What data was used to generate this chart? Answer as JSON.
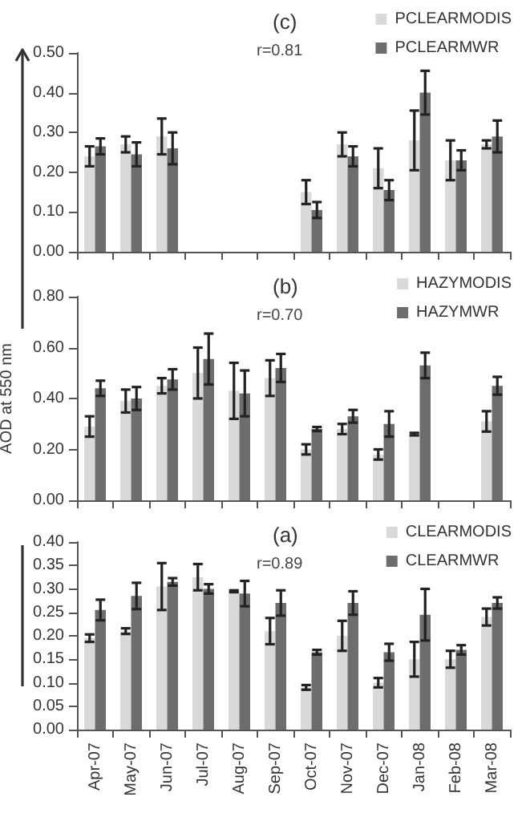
{
  "chart_data": [
    {
      "type": "bar",
      "title": "(c)",
      "annotations": [
        "r=0.81"
      ],
      "categories": [
        null,
        null,
        null,
        null,
        null,
        null,
        null,
        null,
        null,
        null,
        null,
        null
      ],
      "series": [
        {
          "name": "PCLEARMODIS",
          "color": "#d9d9d9",
          "values": [
            0.24,
            0.27,
            0.29,
            null,
            null,
            null,
            0.15,
            0.27,
            0.21,
            0.28,
            0.23,
            0.27
          ],
          "errors": [
            0.025,
            0.02,
            0.045,
            null,
            null,
            null,
            0.03,
            0.03,
            0.05,
            0.075,
            0.05,
            0.01
          ]
        },
        {
          "name": "PCLEARMWR",
          "color": "#6d6d6d",
          "values": [
            0.265,
            0.245,
            0.26,
            null,
            null,
            null,
            0.105,
            0.24,
            0.155,
            0.4,
            0.23,
            0.29
          ],
          "errors": [
            0.02,
            0.03,
            0.04,
            null,
            null,
            null,
            0.02,
            0.025,
            0.025,
            0.055,
            0.025,
            0.04
          ]
        }
      ],
      "ylim": [
        0,
        0.5
      ],
      "yticks": [
        {
          "value": 0,
          "label": "0.00"
        },
        {
          "value": 0.1,
          "label": "0.10"
        },
        {
          "value": 0.2,
          "label": "0.20"
        },
        {
          "value": 0.3,
          "label": "0.30"
        },
        {
          "value": 0.4,
          "label": "0.40"
        },
        {
          "value": 0.5,
          "label": "0.50"
        }
      ],
      "legend": "top right",
      "grid": false
    },
    {
      "type": "bar",
      "title": "(b)",
      "annotations": [
        "r=0.70"
      ],
      "ylabel": "AOD at 550 nm",
      "categories": [
        null,
        null,
        null,
        null,
        null,
        null,
        null,
        null,
        null,
        null,
        null,
        null
      ],
      "series": [
        {
          "name": "HAZYMODIS",
          "color": "#d9d9d9",
          "values": [
            0.29,
            0.39,
            0.45,
            0.5,
            0.43,
            0.48,
            0.2,
            0.28,
            0.18,
            0.26,
            null,
            0.31
          ],
          "errors": [
            0.04,
            0.045,
            0.03,
            0.1,
            0.11,
            0.07,
            0.02,
            0.02,
            0.02,
            0.005,
            null,
            0.04
          ]
        },
        {
          "name": "HAZYMWR",
          "color": "#6d6d6d",
          "values": [
            0.44,
            0.4,
            0.475,
            0.555,
            0.42,
            0.52,
            0.28,
            0.33,
            0.3,
            0.53,
            null,
            0.45
          ],
          "errors": [
            0.03,
            0.045,
            0.04,
            0.1,
            0.09,
            0.055,
            0.008,
            0.025,
            0.05,
            0.05,
            null,
            0.035
          ]
        }
      ],
      "ylim": [
        0,
        0.8
      ],
      "yticks": [
        {
          "value": 0,
          "label": "0.00"
        },
        {
          "value": 0.2,
          "label": "0.20"
        },
        {
          "value": 0.4,
          "label": "0.40"
        },
        {
          "value": 0.6,
          "label": "0.60"
        },
        {
          "value": 0.8,
          "label": "0.80"
        }
      ],
      "legend": "top right",
      "grid": false
    },
    {
      "type": "bar",
      "title": "(a)",
      "annotations": [
        "r=0.89"
      ],
      "categories": [
        "Apr-07",
        "May-07",
        "Jun-07",
        "Jul-07",
        "Aug-07",
        "Sep-07",
        "Oct-07",
        "Nov-07",
        "Dec-07",
        "Jan-08",
        "Feb-08",
        "Mar-08"
      ],
      "series": [
        {
          "name": "CLEARMODIS",
          "color": "#d9d9d9",
          "values": [
            0.195,
            0.21,
            0.305,
            0.325,
            0.295,
            0.21,
            0.09,
            0.2,
            0.1,
            0.15,
            0.15,
            0.24
          ],
          "errors": [
            0.008,
            0.006,
            0.05,
            0.028,
            0.002,
            0.028,
            0.005,
            0.032,
            0.01,
            0.037,
            0.018,
            0.018
          ]
        },
        {
          "name": "CLEARMWR",
          "color": "#6d6d6d",
          "values": [
            0.255,
            0.285,
            0.315,
            0.3,
            0.29,
            0.27,
            0.165,
            0.27,
            0.165,
            0.245,
            0.17,
            0.27
          ],
          "errors": [
            0.022,
            0.028,
            0.008,
            0.01,
            0.027,
            0.027,
            0.005,
            0.025,
            0.018,
            0.055,
            0.01,
            0.012
          ]
        }
      ],
      "ylim": [
        0,
        0.4
      ],
      "yticks": [
        {
          "value": 0,
          "label": "0.00"
        },
        {
          "value": 0.05,
          "label": "0.05"
        },
        {
          "value": 0.1,
          "label": "0.10"
        },
        {
          "value": 0.15,
          "label": "0.15"
        },
        {
          "value": 0.2,
          "label": "0.20"
        },
        {
          "value": 0.25,
          "label": "0.25"
        },
        {
          "value": 0.3,
          "label": "0.30"
        },
        {
          "value": 0.35,
          "label": "0.35"
        },
        {
          "value": 0.4,
          "label": "0.40"
        }
      ],
      "legend": "top right",
      "grid": false
    }
  ]
}
